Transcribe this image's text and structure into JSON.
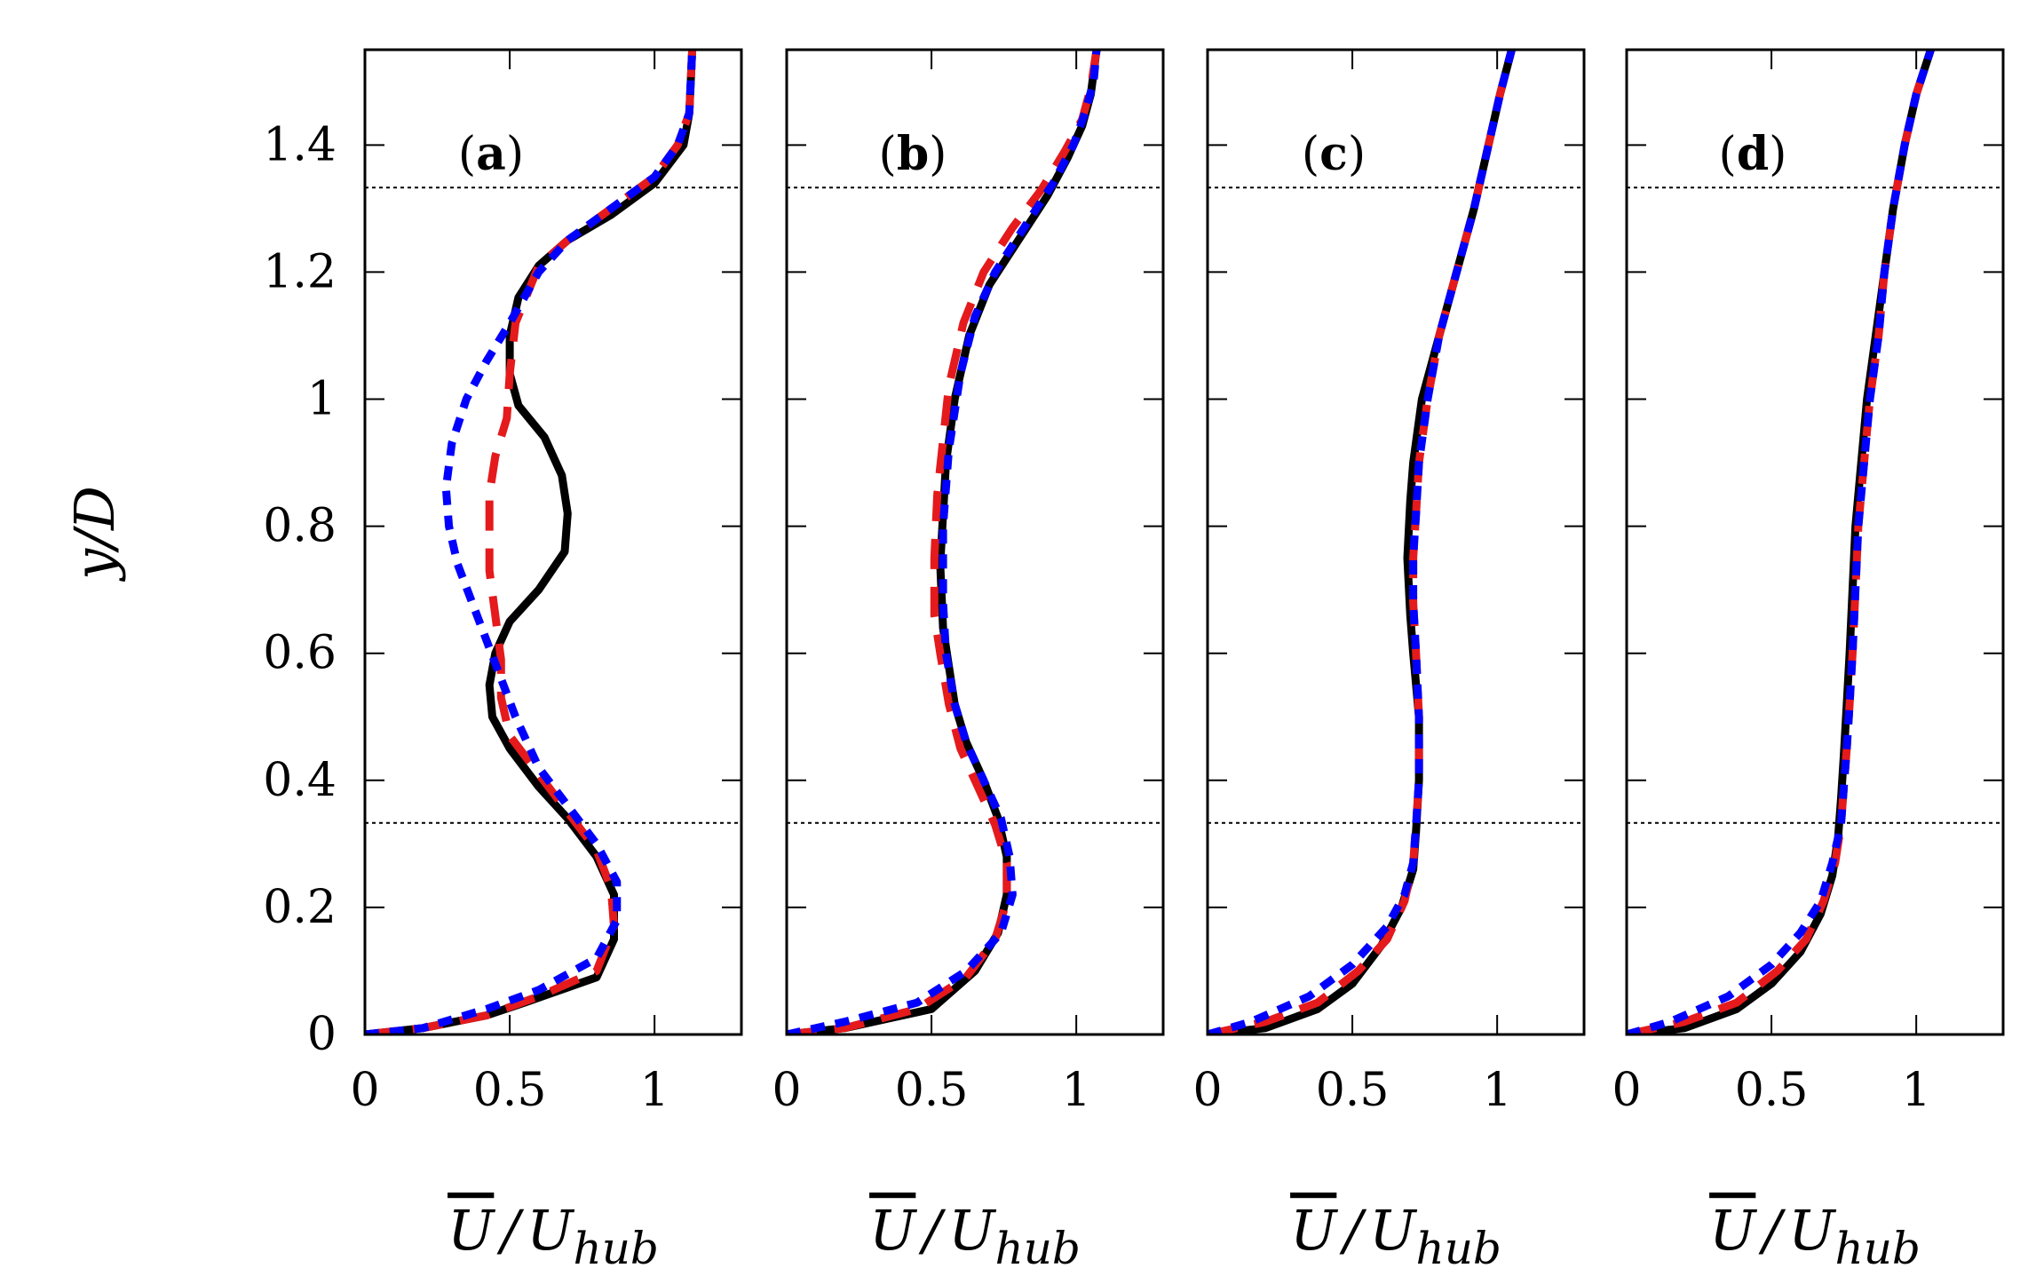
{
  "chart_data": {
    "type": "line",
    "ylabel": "y/D",
    "ylim": [
      0,
      1.55
    ],
    "yticks": [
      0,
      0.2,
      0.4,
      0.6,
      0.8,
      1,
      1.2,
      1.4
    ],
    "ytick_labels": [
      "0",
      "0.2",
      "0.4",
      "0.6",
      "0.8",
      "1",
      "1.2",
      "1.4"
    ],
    "xlim": [
      0,
      1.3
    ],
    "xticks": [
      0,
      0.5,
      1
    ],
    "xtick_labels": [
      "0",
      "0.5",
      "1"
    ],
    "xlabel_main": "U",
    "xlabel_slash": "/",
    "xlabel_ref": "U",
    "xlabel_sub": "hub",
    "reference_lines_y": [
      0.333,
      1.333
    ],
    "series_styles": [
      {
        "color": "#000000",
        "dash": "solid"
      },
      {
        "color": "#e41a1c",
        "dash": "long-dash"
      },
      {
        "color": "#0000ff",
        "dash": "short-dash"
      }
    ],
    "panels": [
      {
        "label_open": "(",
        "label_letter": "a",
        "label_close": ")",
        "series": [
          {
            "x": [
              0,
              0.2,
              0.42,
              0.55,
              0.8,
              0.86,
              0.86,
              0.8,
              0.7,
              0.6,
              0.5,
              0.44,
              0.43,
              0.45,
              0.5,
              0.6,
              0.69,
              0.7,
              0.68,
              0.62,
              0.53,
              0.5,
              0.5,
              0.53,
              0.6,
              0.7,
              0.85,
              1.0,
              1.1,
              1.12,
              1.13
            ],
            "y": [
              0,
              0.01,
              0.03,
              0.05,
              0.09,
              0.15,
              0.22,
              0.28,
              0.34,
              0.39,
              0.45,
              0.5,
              0.55,
              0.6,
              0.65,
              0.7,
              0.76,
              0.82,
              0.88,
              0.94,
              0.99,
              1.04,
              1.1,
              1.16,
              1.21,
              1.25,
              1.29,
              1.34,
              1.4,
              1.45,
              1.55
            ]
          },
          {
            "x": [
              0,
              0.2,
              0.42,
              0.6,
              0.8,
              0.86,
              0.85,
              0.8,
              0.7,
              0.6,
              0.5,
              0.47,
              0.47,
              0.45,
              0.43,
              0.43,
              0.45,
              0.49,
              0.5,
              0.52,
              0.6,
              0.7,
              0.85,
              1.0,
              1.08,
              1.12,
              1.13
            ],
            "y": [
              0,
              0.01,
              0.03,
              0.06,
              0.1,
              0.17,
              0.23,
              0.29,
              0.35,
              0.41,
              0.47,
              0.53,
              0.59,
              0.66,
              0.73,
              0.85,
              0.91,
              0.97,
              1.04,
              1.12,
              1.21,
              1.25,
              1.3,
              1.35,
              1.4,
              1.45,
              1.55
            ]
          },
          {
            "x": [
              0,
              0.2,
              0.42,
              0.6,
              0.8,
              0.87,
              0.87,
              0.8,
              0.7,
              0.6,
              0.52,
              0.47,
              0.42,
              0.37,
              0.32,
              0.29,
              0.28,
              0.3,
              0.35,
              0.42,
              0.5,
              0.6,
              0.7,
              0.85,
              1.0,
              1.08,
              1.12,
              1.13
            ],
            "y": [
              0,
              0.01,
              0.04,
              0.07,
              0.12,
              0.18,
              0.24,
              0.3,
              0.36,
              0.42,
              0.5,
              0.56,
              0.62,
              0.68,
              0.74,
              0.8,
              0.86,
              0.93,
              1.0,
              1.06,
              1.12,
              1.2,
              1.25,
              1.3,
              1.35,
              1.4,
              1.45,
              1.55
            ]
          }
        ]
      },
      {
        "label_open": "(",
        "label_letter": "b",
        "label_close": ")",
        "series": [
          {
            "x": [
              0,
              0.2,
              0.5,
              0.65,
              0.73,
              0.76,
              0.76,
              0.73,
              0.68,
              0.62,
              0.58,
              0.56,
              0.54,
              0.53,
              0.55,
              0.58,
              0.63,
              0.7,
              0.8,
              0.9,
              0.97,
              1.02,
              1.05,
              1.07
            ],
            "y": [
              0,
              0.01,
              0.04,
              0.1,
              0.16,
              0.22,
              0.28,
              0.34,
              0.4,
              0.46,
              0.52,
              0.58,
              0.64,
              0.74,
              0.9,
              1.0,
              1.1,
              1.18,
              1.25,
              1.32,
              1.38,
              1.43,
              1.48,
              1.55
            ]
          },
          {
            "x": [
              0,
              0.2,
              0.45,
              0.62,
              0.72,
              0.76,
              0.76,
              0.72,
              0.66,
              0.6,
              0.56,
              0.53,
              0.51,
              0.51,
              0.52,
              0.56,
              0.61,
              0.68,
              0.78,
              0.88,
              0.96,
              1.02,
              1.05,
              1.07
            ],
            "y": [
              0,
              0.01,
              0.04,
              0.09,
              0.15,
              0.21,
              0.27,
              0.33,
              0.39,
              0.45,
              0.52,
              0.6,
              0.66,
              0.75,
              0.85,
              1.02,
              1.12,
              1.2,
              1.27,
              1.33,
              1.39,
              1.44,
              1.49,
              1.55
            ]
          },
          {
            "x": [
              0,
              0.2,
              0.45,
              0.62,
              0.74,
              0.78,
              0.77,
              0.74,
              0.68,
              0.62,
              0.58,
              0.55,
              0.54,
              0.54,
              0.56,
              0.6,
              0.65,
              0.72,
              0.82,
              0.92,
              0.99,
              1.03,
              1.06,
              1.07
            ],
            "y": [
              0,
              0.02,
              0.05,
              0.1,
              0.16,
              0.22,
              0.28,
              0.34,
              0.4,
              0.46,
              0.52,
              0.6,
              0.68,
              0.8,
              0.92,
              1.04,
              1.13,
              1.2,
              1.27,
              1.34,
              1.4,
              1.45,
              1.5,
              1.55
            ]
          }
        ]
      },
      {
        "label_open": "(",
        "label_letter": "c",
        "label_close": ")",
        "series": [
          {
            "x": [
              0,
              0.2,
              0.38,
              0.5,
              0.6,
              0.67,
              0.71,
              0.72,
              0.73,
              0.73,
              0.71,
              0.7,
              0.69,
              0.7,
              0.71,
              0.74,
              0.8,
              0.86,
              0.92,
              0.97,
              1.01,
              1.05
            ],
            "y": [
              0,
              0.01,
              0.04,
              0.08,
              0.14,
              0.2,
              0.26,
              0.32,
              0.4,
              0.5,
              0.6,
              0.66,
              0.75,
              0.84,
              0.9,
              1.0,
              1.1,
              1.2,
              1.3,
              1.4,
              1.48,
              1.55
            ]
          },
          {
            "x": [
              0,
              0.2,
              0.38,
              0.52,
              0.62,
              0.68,
              0.71,
              0.72,
              0.73,
              0.73,
              0.72,
              0.71,
              0.71,
              0.72,
              0.73,
              0.76,
              0.8,
              0.86,
              0.92,
              0.97,
              1.01,
              1.05
            ],
            "y": [
              0,
              0.02,
              0.05,
              0.1,
              0.15,
              0.21,
              0.27,
              0.33,
              0.4,
              0.5,
              0.6,
              0.68,
              0.75,
              0.82,
              0.9,
              1.0,
              1.1,
              1.2,
              1.3,
              1.4,
              1.48,
              1.55
            ]
          },
          {
            "x": [
              0,
              0.15,
              0.35,
              0.5,
              0.62,
              0.68,
              0.71,
              0.72,
              0.73,
              0.73,
              0.72,
              0.71,
              0.71,
              0.72,
              0.73,
              0.76,
              0.8,
              0.86,
              0.92,
              0.97,
              1.01,
              1.05
            ],
            "y": [
              0,
              0.02,
              0.06,
              0.11,
              0.17,
              0.22,
              0.27,
              0.33,
              0.4,
              0.5,
              0.6,
              0.68,
              0.75,
              0.82,
              0.9,
              1.0,
              1.1,
              1.2,
              1.3,
              1.4,
              1.48,
              1.55
            ]
          }
        ]
      },
      {
        "label_open": "(",
        "label_letter": "d",
        "label_close": ")",
        "series": [
          {
            "x": [
              0,
              0.2,
              0.38,
              0.5,
              0.6,
              0.67,
              0.71,
              0.73,
              0.74,
              0.75,
              0.76,
              0.77,
              0.78,
              0.79,
              0.81,
              0.83,
              0.86,
              0.89,
              0.92,
              0.96,
              1.0,
              1.05
            ],
            "y": [
              0,
              0.01,
              0.04,
              0.08,
              0.13,
              0.19,
              0.25,
              0.31,
              0.37,
              0.44,
              0.52,
              0.6,
              0.7,
              0.8,
              0.9,
              1.0,
              1.1,
              1.2,
              1.3,
              1.4,
              1.48,
              1.55
            ]
          },
          {
            "x": [
              0,
              0.2,
              0.38,
              0.52,
              0.62,
              0.68,
              0.72,
              0.74,
              0.75,
              0.76,
              0.77,
              0.78,
              0.79,
              0.8,
              0.82,
              0.84,
              0.87,
              0.89,
              0.92,
              0.96,
              1.0,
              1.05
            ],
            "y": [
              0,
              0.02,
              0.05,
              0.1,
              0.15,
              0.21,
              0.27,
              0.33,
              0.39,
              0.45,
              0.52,
              0.6,
              0.7,
              0.8,
              0.9,
              1.0,
              1.1,
              1.2,
              1.3,
              1.4,
              1.48,
              1.55
            ]
          },
          {
            "x": [
              0,
              0.15,
              0.35,
              0.5,
              0.6,
              0.67,
              0.71,
              0.74,
              0.75,
              0.76,
              0.77,
              0.78,
              0.79,
              0.8,
              0.82,
              0.84,
              0.87,
              0.89,
              0.92,
              0.96,
              1.0,
              1.05
            ],
            "y": [
              0,
              0.02,
              0.06,
              0.11,
              0.16,
              0.21,
              0.27,
              0.33,
              0.39,
              0.45,
              0.52,
              0.6,
              0.7,
              0.8,
              0.9,
              1.0,
              1.1,
              1.2,
              1.3,
              1.4,
              1.48,
              1.55
            ]
          }
        ]
      }
    ]
  }
}
